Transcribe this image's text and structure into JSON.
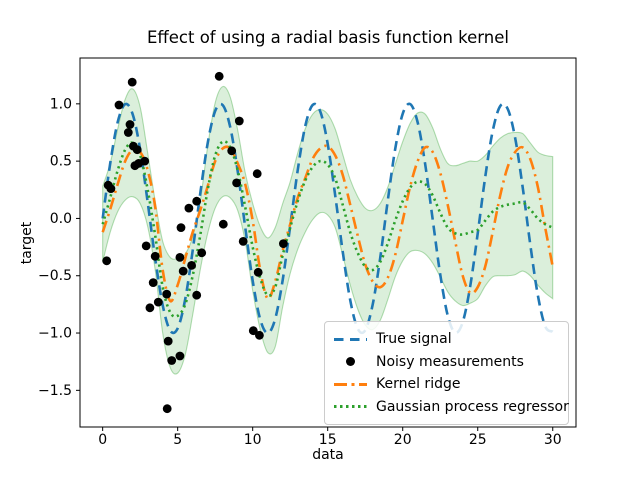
{
  "figure": {
    "background": "#ffffff"
  },
  "chart_data": {
    "type": "line",
    "title": "Effect of using a radial basis function kernel",
    "xlabel": "data",
    "ylabel": "target",
    "xlim": [
      -1.51,
      31.55
    ],
    "ylim": [
      -1.82,
      1.4
    ],
    "grid": false,
    "legend_position": "lower right",
    "xticks": [
      0,
      5,
      10,
      15,
      20,
      25,
      30
    ],
    "xtick_labels": [
      "0",
      "5",
      "10",
      "15",
      "20",
      "25",
      "30"
    ],
    "yticks": [
      -1.5,
      -1.0,
      -0.5,
      0.0,
      0.5,
      1.0
    ],
    "ytick_labels": [
      "−1.5",
      "−1.0",
      "−0.5",
      "0.0",
      "0.5",
      "1.0"
    ],
    "x": [
      0,
      0.5,
      1,
      1.5,
      2,
      2.5,
      3,
      3.5,
      4,
      4.5,
      5,
      5.5,
      6,
      6.5,
      7,
      7.5,
      8,
      8.5,
      9,
      9.5,
      10,
      10.5,
      11,
      11.5,
      12,
      12.5,
      13,
      13.5,
      14,
      14.5,
      15,
      15.5,
      16,
      16.5,
      17,
      17.5,
      18,
      18.5,
      19,
      19.5,
      20,
      20.5,
      21,
      21.5,
      22,
      22.5,
      23,
      23.5,
      24,
      24.5,
      25,
      25.5,
      26,
      26.5,
      27,
      27.5,
      28,
      28.5,
      29,
      29.5,
      30
    ],
    "series": [
      {
        "name": "True signal",
        "type": "line",
        "style": "dashed",
        "color": "#1f77b4",
        "y": [
          0.0,
          0.479,
          0.841,
          0.997,
          0.909,
          0.599,
          0.141,
          -0.351,
          -0.757,
          -0.978,
          -0.959,
          -0.706,
          -0.279,
          0.215,
          0.657,
          0.938,
          0.989,
          0.798,
          0.412,
          -0.075,
          -0.544,
          -0.88,
          -1.0,
          -0.876,
          -0.537,
          -0.066,
          0.42,
          0.804,
          0.991,
          0.935,
          0.65,
          0.201,
          -0.288,
          -0.712,
          -0.961,
          -0.976,
          -0.751,
          -0.345,
          0.15,
          0.606,
          0.913,
          0.998,
          0.837,
          0.472,
          -0.009,
          -0.487,
          -0.846,
          -0.997,
          -0.906,
          -0.592,
          -0.132,
          0.36,
          0.763,
          0.98,
          0.956,
          0.7,
          0.271,
          -0.223,
          -0.664,
          -0.941,
          -0.988
        ]
      },
      {
        "name": "Noisy measurements",
        "type": "scatter",
        "color": "#000000",
        "marker_radius": 4.4,
        "points": [
          [
            0.37,
            0.29
          ],
          [
            0.55,
            0.26
          ],
          [
            1.09,
            0.99
          ],
          [
            1.97,
            1.19
          ],
          [
            1.82,
            0.82
          ],
          [
            1.71,
            0.75
          ],
          [
            2.05,
            0.63
          ],
          [
            2.3,
            0.6
          ],
          [
            2.4,
            0.48
          ],
          [
            2.8,
            0.5
          ],
          [
            2.15,
            0.46
          ],
          [
            0.27,
            -0.37
          ],
          [
            2.9,
            -0.24
          ],
          [
            3.5,
            -0.33
          ],
          [
            3.37,
            -0.56
          ],
          [
            3.15,
            -0.78
          ],
          [
            3.71,
            -0.73
          ],
          [
            4.27,
            -0.66
          ],
          [
            5.15,
            -0.34
          ],
          [
            5.37,
            -0.46
          ],
          [
            5.93,
            -0.41
          ],
          [
            6.6,
            -0.3
          ],
          [
            6.27,
            -0.67
          ],
          [
            5.22,
            -0.08
          ],
          [
            5.75,
            0.09
          ],
          [
            6.27,
            0.15
          ],
          [
            4.37,
            -1.07
          ],
          [
            4.6,
            -1.24
          ],
          [
            5.15,
            -1.2
          ],
          [
            4.3,
            -1.66
          ],
          [
            7.77,
            1.24
          ],
          [
            9.11,
            0.85
          ],
          [
            8.6,
            0.59
          ],
          [
            10.3,
            0.39
          ],
          [
            8.93,
            0.31
          ],
          [
            8.04,
            -0.05
          ],
          [
            9.37,
            -0.2
          ],
          [
            12.05,
            -0.22
          ],
          [
            10.37,
            -0.47
          ],
          [
            10.04,
            -0.98
          ],
          [
            10.45,
            -1.02
          ]
        ]
      },
      {
        "name": "Kernel ridge",
        "type": "line",
        "style": "dashdot",
        "color": "#ff7f0e",
        "y": [
          -0.12,
          0.08,
          0.3,
          0.5,
          0.6,
          0.58,
          0.42,
          0.1,
          -0.45,
          -0.72,
          -0.58,
          -0.35,
          -0.12,
          0.07,
          0.28,
          0.5,
          0.61,
          0.61,
          0.48,
          0.3,
          -0.02,
          -0.45,
          -0.7,
          -0.55,
          -0.28,
          -0.05,
          0.18,
          0.35,
          0.52,
          0.61,
          0.63,
          0.55,
          0.38,
          0.12,
          -0.15,
          -0.4,
          -0.55,
          -0.6,
          -0.52,
          -0.32,
          -0.02,
          0.28,
          0.5,
          0.62,
          0.58,
          0.4,
          0.12,
          -0.2,
          -0.5,
          -0.65,
          -0.6,
          -0.42,
          -0.12,
          0.2,
          0.45,
          0.58,
          0.62,
          0.52,
          0.28,
          -0.08,
          -0.42
        ]
      },
      {
        "name": "Gaussian process regressor",
        "type": "line",
        "style": "dotted",
        "color": "#2ca02c",
        "y": [
          -0.05,
          0.18,
          0.42,
          0.6,
          0.66,
          0.55,
          0.25,
          -0.15,
          -0.6,
          -0.82,
          -0.85,
          -0.75,
          -0.5,
          -0.15,
          0.25,
          0.55,
          0.67,
          0.62,
          0.42,
          0.1,
          -0.25,
          -0.52,
          -0.67,
          -0.6,
          -0.32,
          -0.08,
          0.15,
          0.33,
          0.45,
          0.5,
          0.47,
          0.35,
          0.12,
          -0.12,
          -0.3,
          -0.42,
          -0.45,
          -0.38,
          -0.22,
          -0.02,
          0.15,
          0.27,
          0.32,
          0.3,
          0.2,
          0.05,
          -0.08,
          -0.13,
          -0.14,
          -0.12,
          -0.1,
          -0.02,
          0.06,
          0.1,
          0.12,
          0.13,
          0.14,
          0.08,
          0.0,
          -0.05,
          -0.08
        ],
        "band": {
          "std": [
            0.33,
            0.3,
            0.36,
            0.44,
            0.47,
            0.42,
            0.32,
            0.3,
            0.4,
            0.48,
            0.5,
            0.44,
            0.34,
            0.3,
            0.38,
            0.46,
            0.48,
            0.44,
            0.35,
            0.3,
            0.38,
            0.45,
            0.5,
            0.52,
            0.45,
            0.4,
            0.42,
            0.45,
            0.46,
            0.45,
            0.44,
            0.43,
            0.44,
            0.46,
            0.49,
            0.51,
            0.52,
            0.51,
            0.49,
            0.49,
            0.52,
            0.56,
            0.6,
            0.61,
            0.59,
            0.56,
            0.56,
            0.59,
            0.62,
            0.62,
            0.6,
            0.57,
            0.57,
            0.6,
            0.62,
            0.62,
            0.6,
            0.58,
            0.58,
            0.6,
            0.62
          ],
          "fill_color": "#2ca02c",
          "fill_opacity": 0.17
        }
      }
    ]
  },
  "legend": {
    "items": [
      {
        "label": "True signal"
      },
      {
        "label": "Noisy measurements"
      },
      {
        "label": "Kernel ridge"
      },
      {
        "label": "Gaussian process regressor"
      }
    ]
  }
}
